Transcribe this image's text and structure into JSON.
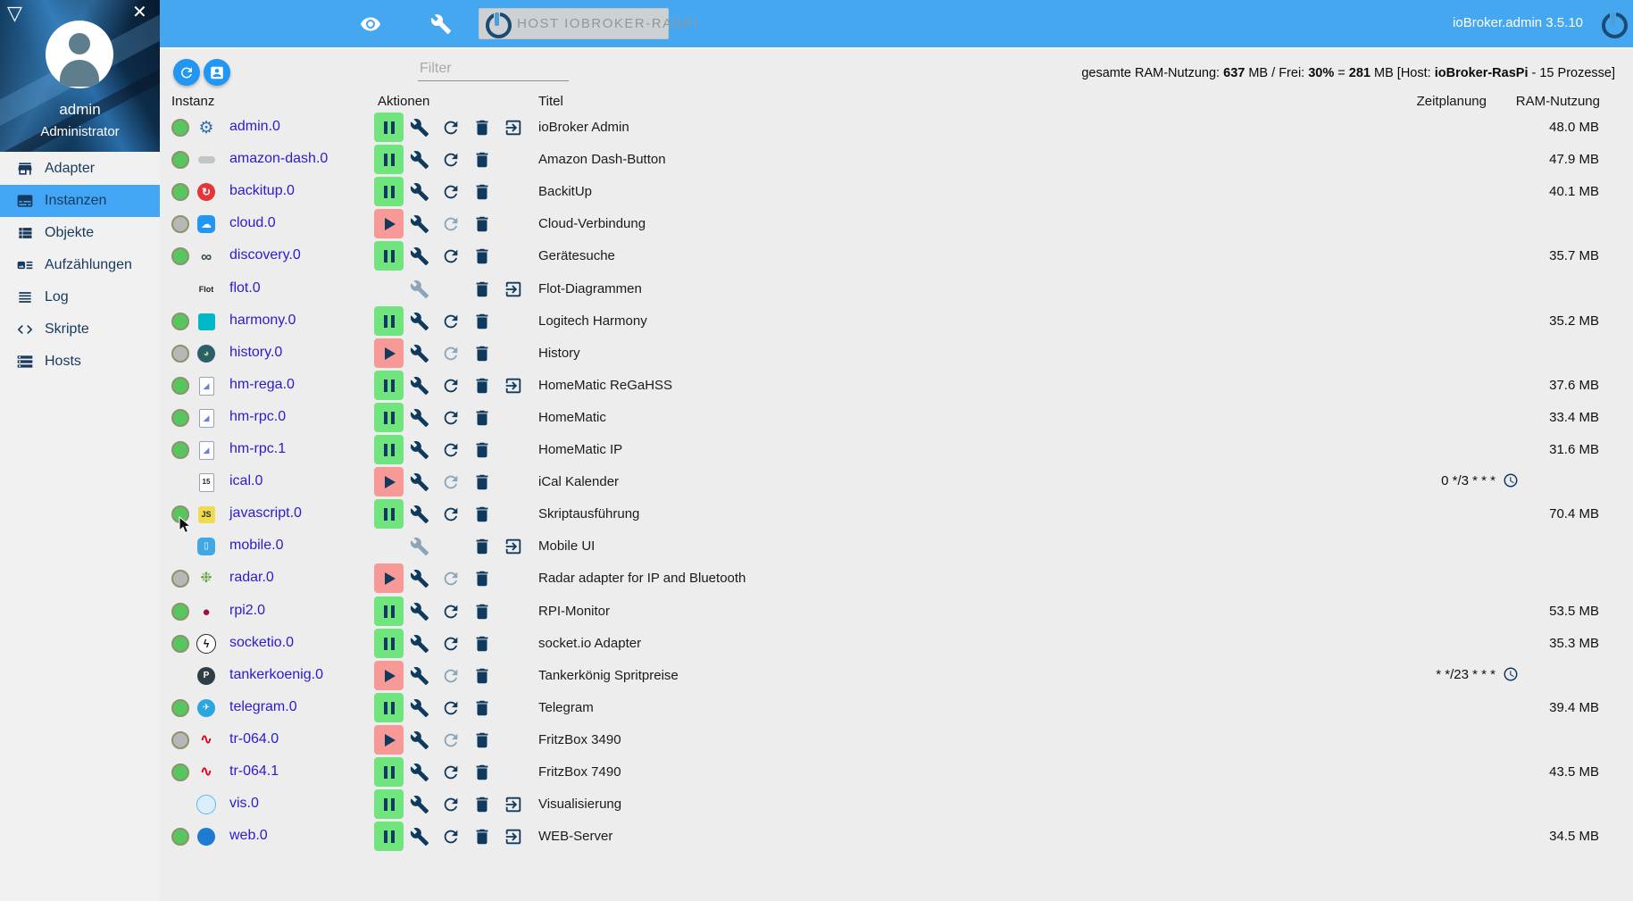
{
  "topbar": {
    "host_button_label": "HOST IOBROKER-RASPI",
    "version": "ioBroker.admin 3.5.10"
  },
  "sidebar": {
    "user_name": "admin",
    "user_role": "Administrator",
    "items": [
      {
        "label": "Adapter",
        "icon": "adapter-store-icon",
        "selected": false
      },
      {
        "label": "Instanzen",
        "icon": "instances-icon",
        "selected": true
      },
      {
        "label": "Objekte",
        "icon": "objects-icon",
        "selected": false
      },
      {
        "label": "Aufzählungen",
        "icon": "enums-icon",
        "selected": false
      },
      {
        "label": "Log",
        "icon": "log-icon",
        "selected": false
      },
      {
        "label": "Skripte",
        "icon": "scripts-icon",
        "selected": false
      },
      {
        "label": "Hosts",
        "icon": "hosts-icon",
        "selected": false
      }
    ]
  },
  "toolbar": {
    "filter_placeholder": "Filter",
    "ram_summary": [
      {
        "text": "gesamte RAM-Nutzung: "
      },
      {
        "text": "637",
        "bold": true
      },
      {
        "text": " MB / Frei: "
      },
      {
        "text": "30%",
        "bold": true
      },
      {
        "text": " = "
      },
      {
        "text": "281",
        "bold": true
      },
      {
        "text": " MB [Host: "
      },
      {
        "text": "ioBroker-RasPi",
        "bold": true
      },
      {
        "text": " - 15 Prozesse]"
      }
    ]
  },
  "table": {
    "headers": {
      "instance": "Instanz",
      "actions": "Aktionen",
      "title": "Titel",
      "schedule": "Zeitplanung",
      "ram": "RAM-Nutzung"
    },
    "rows": [
      {
        "name": "admin.0",
        "title": "ioBroker Admin",
        "status": "green",
        "toggle": "pause",
        "wrench": "active",
        "refresh": "active",
        "link": true,
        "schedule": null,
        "ram": "48.0 MB",
        "icon": {
          "name": "admin-adapter-icon",
          "shape": "none",
          "glyph": "⚙",
          "fg": "#2f6fae",
          "bg": "",
          "size": 19,
          "bold": false
        }
      },
      {
        "name": "amazon-dash.0",
        "title": "Amazon Dash-Button",
        "status": "green",
        "toggle": "pause",
        "wrench": "active",
        "refresh": "active",
        "link": false,
        "schedule": null,
        "ram": "47.9 MB",
        "icon": {
          "name": "amazon-dash-adapter-icon",
          "shape": "pill",
          "glyph": "",
          "fg": "",
          "bg": "#c2c6c2",
          "size": 0,
          "bold": false
        }
      },
      {
        "name": "backitup.0",
        "title": "BackitUp",
        "status": "green",
        "toggle": "pause",
        "wrench": "active",
        "refresh": "active",
        "link": false,
        "schedule": null,
        "ram": "40.1 MB",
        "icon": {
          "name": "backitup-adapter-icon",
          "shape": "circle",
          "glyph": "↻",
          "fg": "#ffffff",
          "bg": "#e53537",
          "size": 12,
          "bold": true
        }
      },
      {
        "name": "cloud.0",
        "title": "Cloud-Verbindung",
        "status": "gray",
        "toggle": "play",
        "wrench": "active",
        "refresh": "disabled",
        "link": false,
        "schedule": null,
        "ram": null,
        "icon": {
          "name": "cloud-adapter-icon",
          "shape": "rounded",
          "glyph": "☁",
          "fg": "#ffffff",
          "bg": "#2196f3",
          "size": 12,
          "bold": false
        }
      },
      {
        "name": "discovery.0",
        "title": "Gerätesuche",
        "status": "green",
        "toggle": "pause",
        "wrench": "active",
        "refresh": "active",
        "link": false,
        "schedule": null,
        "ram": "35.7 MB",
        "icon": {
          "name": "discovery-adapter-icon",
          "shape": "none",
          "glyph": "∞",
          "fg": "#37474f",
          "bg": "",
          "size": 17,
          "bold": true
        }
      },
      {
        "name": "flot.0",
        "title": "Flot-Diagrammen",
        "status": "none",
        "toggle": null,
        "wrench": "disabled",
        "refresh": "none",
        "link": true,
        "schedule": null,
        "ram": null,
        "icon": {
          "name": "flot-adapter-icon",
          "shape": "none",
          "glyph": "Flot",
          "fg": "#222222",
          "bg": "",
          "size": 9,
          "bold": true
        }
      },
      {
        "name": "harmony.0",
        "title": "Logitech Harmony",
        "status": "green",
        "toggle": "pause",
        "wrench": "active",
        "refresh": "active",
        "link": false,
        "schedule": null,
        "ram": "35.2 MB",
        "icon": {
          "name": "harmony-adapter-icon",
          "shape": "square",
          "glyph": "",
          "fg": "",
          "bg": "#00b9c6",
          "size": 0,
          "bold": false
        }
      },
      {
        "name": "history.0",
        "title": "History",
        "status": "gray",
        "toggle": "play",
        "wrench": "active",
        "refresh": "disabled",
        "link": false,
        "schedule": null,
        "ram": null,
        "icon": {
          "name": "history-adapter-icon",
          "shape": "circle",
          "glyph": "◕",
          "fg": "#aed581",
          "bg": "#2d5f6b",
          "size": 11,
          "bold": false
        }
      },
      {
        "name": "hm-rega.0",
        "title": "HomeMatic ReGaHSS",
        "status": "green",
        "toggle": "pause",
        "wrench": "active",
        "refresh": "active",
        "link": true,
        "schedule": null,
        "ram": "37.6 MB",
        "icon": {
          "name": "homematic-rega-adapter-icon",
          "shape": "page",
          "glyph": "◢",
          "fg": "#6f7fd0",
          "bg": "",
          "size": 9,
          "bold": false
        }
      },
      {
        "name": "hm-rpc.0",
        "title": "HomeMatic",
        "status": "green",
        "toggle": "pause",
        "wrench": "active",
        "refresh": "active",
        "link": false,
        "schedule": null,
        "ram": "33.4 MB",
        "icon": {
          "name": "homematic-rpc-adapter-icon",
          "shape": "page",
          "glyph": "◢",
          "fg": "#6f7fd0",
          "bg": "",
          "size": 9,
          "bold": false
        }
      },
      {
        "name": "hm-rpc.1",
        "title": "HomeMatic IP",
        "status": "green",
        "toggle": "pause",
        "wrench": "active",
        "refresh": "active",
        "link": false,
        "schedule": null,
        "ram": "31.6 MB",
        "icon": {
          "name": "homematic-rpc-adapter-icon",
          "shape": "page",
          "glyph": "◢",
          "fg": "#6f7fd0",
          "bg": "",
          "size": 9,
          "bold": false
        }
      },
      {
        "name": "ical.0",
        "title": "iCal Kalender",
        "status": "none",
        "toggle": "play",
        "wrench": "active",
        "refresh": "disabled",
        "link": false,
        "schedule": "0 */3 * * *",
        "ram": null,
        "icon": {
          "name": "ical-adapter-icon",
          "shape": "page",
          "glyph": "15",
          "fg": "#222222",
          "bg": "",
          "size": 8,
          "bold": true
        }
      },
      {
        "name": "javascript.0",
        "title": "Skriptausführung",
        "status": "green",
        "toggle": "pause",
        "wrench": "active",
        "refresh": "active",
        "link": false,
        "schedule": null,
        "ram": "70.4 MB",
        "icon": {
          "name": "javascript-adapter-icon",
          "shape": "square",
          "glyph": "JS",
          "fg": "#2d2d2d",
          "bg": "#f0db4f",
          "size": 9,
          "bold": true
        }
      },
      {
        "name": "mobile.0",
        "title": "Mobile UI",
        "status": "none",
        "toggle": null,
        "wrench": "disabled",
        "refresh": "none",
        "link": true,
        "schedule": null,
        "ram": null,
        "icon": {
          "name": "mobile-adapter-icon",
          "shape": "rounded",
          "glyph": "▯",
          "fg": "#eafff0",
          "bg": "#41a7e6",
          "size": 10,
          "bold": false
        }
      },
      {
        "name": "radar.0",
        "title": "Radar adapter for IP and Bluetooth",
        "status": "gray",
        "toggle": "play",
        "wrench": "active",
        "refresh": "disabled",
        "link": false,
        "schedule": null,
        "ram": null,
        "icon": {
          "name": "radar-adapter-icon",
          "shape": "none",
          "glyph": "❉",
          "fg": "#66a63d",
          "bg": "",
          "size": 16,
          "bold": false
        }
      },
      {
        "name": "rpi2.0",
        "title": "RPI-Monitor",
        "status": "green",
        "toggle": "pause",
        "wrench": "active",
        "refresh": "active",
        "link": false,
        "schedule": null,
        "ram": "53.5 MB",
        "icon": {
          "name": "raspberry-adapter-icon",
          "shape": "none",
          "glyph": "●",
          "fg": "#9c1140",
          "bg": "",
          "size": 15,
          "bold": false
        }
      },
      {
        "name": "socketio.0",
        "title": "socket.io Adapter",
        "status": "green",
        "toggle": "pause",
        "wrench": "active",
        "refresh": "active",
        "link": false,
        "schedule": null,
        "ram": "35.3 MB",
        "icon": {
          "name": "socketio-adapter-icon",
          "shape": "circle",
          "glyph": "ϟ",
          "fg": "#111111",
          "bg": "#ffffff",
          "border": "#222222",
          "size": 12,
          "bold": true
        }
      },
      {
        "name": "tankerkoenig.0",
        "title": "Tankerkönig Spritpreise",
        "status": "none",
        "toggle": "play",
        "wrench": "active",
        "refresh": "disabled",
        "link": false,
        "schedule": "* */23 * * *",
        "ram": null,
        "icon": {
          "name": "tankerkoenig-adapter-icon",
          "shape": "circle",
          "glyph": "P",
          "fg": "#ffffff",
          "bg": "#2f3d45",
          "size": 10,
          "bold": true
        }
      },
      {
        "name": "telegram.0",
        "title": "Telegram",
        "status": "green",
        "toggle": "pause",
        "wrench": "active",
        "refresh": "active",
        "link": false,
        "schedule": null,
        "ram": "39.4 MB",
        "icon": {
          "name": "telegram-adapter-icon",
          "shape": "circle",
          "glyph": "✈",
          "fg": "#ffffff",
          "bg": "#2ca6e0",
          "size": 10,
          "bold": false
        }
      },
      {
        "name": "tr-064.0",
        "title": "FritzBox 3490",
        "status": "gray",
        "toggle": "play",
        "wrench": "active",
        "refresh": "disabled",
        "link": false,
        "schedule": null,
        "ram": null,
        "icon": {
          "name": "fritzbox-adapter-icon",
          "shape": "none",
          "glyph": "∿",
          "fg": "#e2001a",
          "bg": "",
          "size": 16,
          "bold": true
        }
      },
      {
        "name": "tr-064.1",
        "title": "FritzBox 7490",
        "status": "green",
        "toggle": "pause",
        "wrench": "active",
        "refresh": "active",
        "link": false,
        "schedule": null,
        "ram": "43.5 MB",
        "icon": {
          "name": "fritzbox-adapter-icon",
          "shape": "none",
          "glyph": "∿",
          "fg": "#e2001a",
          "bg": "",
          "size": 16,
          "bold": true
        }
      },
      {
        "name": "vis.0",
        "title": "Visualisierung",
        "status": "none",
        "toggle": "pause",
        "wrench": "active",
        "refresh": "active",
        "link": true,
        "schedule": null,
        "ram": null,
        "icon": {
          "name": "vis-adapter-icon",
          "shape": "circle",
          "glyph": "",
          "fg": "",
          "bg": "#dbeefc",
          "border": "#5db8f0",
          "size": 0,
          "bold": false
        }
      },
      {
        "name": "web.0",
        "title": "WEB-Server",
        "status": "green",
        "toggle": "pause",
        "wrench": "active",
        "refresh": "active",
        "link": true,
        "schedule": null,
        "ram": "34.5 MB",
        "icon": {
          "name": "web-adapter-icon",
          "shape": "circle",
          "glyph": "",
          "fg": "",
          "bg": "#1f7ad4",
          "size": 0,
          "bold": false
        }
      }
    ]
  }
}
